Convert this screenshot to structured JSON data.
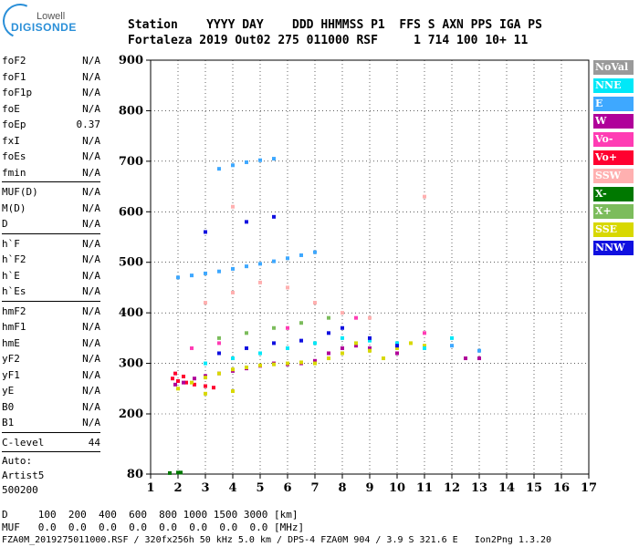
{
  "logo": {
    "line1": "Lowell",
    "line2": "DIGISONDE"
  },
  "header": {
    "labels": "Station    YYYY DAY    DDD HHMMSS P1  FFS S AXN PPS IGA PS",
    "values": "Fortaleza 2019 Out02 275 011000 RSF     1 714 100 10+ 11"
  },
  "params": {
    "group1": [
      {
        "name": "foF2",
        "value": "N/A"
      },
      {
        "name": "foF1",
        "value": "N/A"
      },
      {
        "name": "foF1p",
        "value": "N/A"
      },
      {
        "name": "foE",
        "value": "N/A"
      },
      {
        "name": "foEp",
        "value": "0.37"
      },
      {
        "name": "fxI",
        "value": "N/A"
      },
      {
        "name": "foEs",
        "value": "N/A"
      },
      {
        "name": "fmin",
        "value": "N/A"
      }
    ],
    "group2": [
      {
        "name": "MUF(D)",
        "value": "N/A"
      },
      {
        "name": "M(D)",
        "value": "N/A"
      },
      {
        "name": "D",
        "value": "N/A"
      }
    ],
    "group3": [
      {
        "name": "h`F",
        "value": "N/A"
      },
      {
        "name": "h`F2",
        "value": "N/A"
      },
      {
        "name": "h`E",
        "value": "N/A"
      },
      {
        "name": "h`Es",
        "value": "N/A"
      }
    ],
    "group4": [
      {
        "name": "hmF2",
        "value": "N/A"
      },
      {
        "name": "hmF1",
        "value": "N/A"
      },
      {
        "name": "hmE",
        "value": "N/A"
      },
      {
        "name": "yF2",
        "value": "N/A"
      },
      {
        "name": "yF1",
        "value": "N/A"
      },
      {
        "name": "yE",
        "value": "N/A"
      },
      {
        "name": "B0",
        "value": "N/A"
      },
      {
        "name": "B1",
        "value": "N/A"
      }
    ],
    "clevel": {
      "name": "C-level",
      "value": "44"
    },
    "auto": [
      "Auto:",
      "Artist5",
      "500200"
    ]
  },
  "legend": [
    {
      "label": "NoVal",
      "color": "#9a9a9a"
    },
    {
      "label": "NNE",
      "color": "#00e8f8"
    },
    {
      "label": "E",
      "color": "#3ea8ff"
    },
    {
      "label": "W",
      "color": "#b0009a"
    },
    {
      "label": "Vo-",
      "color": "#ff3cb4"
    },
    {
      "label": "Vo+",
      "color": "#ff0030"
    },
    {
      "label": "SSW",
      "color": "#ffb0b0"
    },
    {
      "label": "X-",
      "color": "#007800"
    },
    {
      "label": "X+",
      "color": "#7cbc5c"
    },
    {
      "label": "SSE",
      "color": "#d8d800"
    },
    {
      "label": "NNW",
      "color": "#1010e0"
    }
  ],
  "footer": {
    "line1": "D     100  200  400  600  800 1000 1500 3000 [km]",
    "line2": "MUF   0.0  0.0  0.0  0.0  0.0  0.0  0.0  0.0 [MHz]",
    "line3": "FZA0M_2019275011000.RSF / 320fx256h 50 kHz 5.0 km / DPS-4 FZA0M 904 / 3.9 S 321.6 E   Ion2Png 1.3.20"
  },
  "chart_data": {
    "type": "scatter",
    "x_ticks": [
      1,
      2,
      3,
      4,
      5,
      6,
      7,
      8,
      9,
      10,
      11,
      12,
      13,
      14,
      15,
      16,
      17
    ],
    "y_ticks": [
      80,
      200,
      300,
      400,
      500,
      600,
      700,
      800,
      900
    ],
    "xlim": [
      1,
      17
    ],
    "ylim": [
      80,
      900
    ],
    "series": [
      {
        "name": "E",
        "points": [
          [
            2.0,
            470
          ],
          [
            2.5,
            474
          ],
          [
            3.0,
            478
          ],
          [
            3.5,
            482
          ],
          [
            4.0,
            487
          ],
          [
            4.5,
            492
          ],
          [
            5.0,
            497
          ],
          [
            5.5,
            502
          ],
          [
            6.0,
            508
          ],
          [
            6.5,
            514
          ],
          [
            7.0,
            520
          ],
          [
            3.5,
            685
          ],
          [
            4.0,
            692
          ],
          [
            4.5,
            698
          ],
          [
            5.0,
            702
          ],
          [
            5.5,
            705
          ],
          [
            12.0,
            335
          ],
          [
            13.0,
            325
          ]
        ]
      },
      {
        "name": "X-",
        "points": [
          [
            1.7,
            82
          ],
          [
            2.0,
            83
          ],
          [
            2.1,
            83
          ]
        ]
      },
      {
        "name": "Vo+",
        "points": [
          [
            1.8,
            270
          ],
          [
            2.0,
            265
          ],
          [
            2.3,
            262
          ],
          [
            2.6,
            258
          ],
          [
            3.0,
            255
          ],
          [
            3.3,
            252
          ],
          [
            1.9,
            280
          ],
          [
            2.2,
            274
          ]
        ]
      },
      {
        "name": "W",
        "points": [
          [
            1.9,
            258
          ],
          [
            2.2,
            262
          ],
          [
            2.6,
            270
          ],
          [
            3.0,
            275
          ],
          [
            3.5,
            280
          ],
          [
            4.0,
            285
          ],
          [
            4.5,
            290
          ],
          [
            5.0,
            295
          ],
          [
            5.5,
            300
          ],
          [
            6.0,
            298
          ],
          [
            6.5,
            300
          ],
          [
            7.0,
            305
          ],
          [
            7.5,
            320
          ],
          [
            8.0,
            330
          ],
          [
            8.5,
            335
          ],
          [
            9.0,
            330
          ],
          [
            10.0,
            320
          ],
          [
            12.5,
            310
          ],
          [
            13.0,
            310
          ]
        ]
      },
      {
        "name": "SSE",
        "points": [
          [
            2.0,
            250
          ],
          [
            2.5,
            262
          ],
          [
            3.0,
            272
          ],
          [
            3.5,
            280
          ],
          [
            4.0,
            288
          ],
          [
            4.5,
            292
          ],
          [
            5.0,
            296
          ],
          [
            5.5,
            298
          ],
          [
            6.0,
            300
          ],
          [
            6.5,
            302
          ],
          [
            7.0,
            300
          ],
          [
            7.5,
            310
          ],
          [
            8.0,
            320
          ],
          [
            8.5,
            340
          ],
          [
            9.0,
            325
          ],
          [
            9.5,
            310
          ],
          [
            10.0,
            330
          ],
          [
            10.5,
            340
          ],
          [
            11.0,
            335
          ],
          [
            4.0,
            245
          ],
          [
            3.0,
            240
          ]
        ]
      },
      {
        "name": "NNE",
        "points": [
          [
            3.0,
            300
          ],
          [
            4.0,
            310
          ],
          [
            5.0,
            320
          ],
          [
            6.0,
            330
          ],
          [
            7.0,
            340
          ],
          [
            8.0,
            350
          ],
          [
            9.0,
            345
          ],
          [
            10.0,
            340
          ],
          [
            11.0,
            330
          ],
          [
            12.0,
            350
          ]
        ]
      },
      {
        "name": "NNW",
        "points": [
          [
            3.5,
            320
          ],
          [
            4.5,
            330
          ],
          [
            5.5,
            340
          ],
          [
            6.5,
            345
          ],
          [
            7.5,
            360
          ],
          [
            8.0,
            370
          ],
          [
            9.0,
            350
          ],
          [
            10.0,
            335
          ],
          [
            3.0,
            560
          ],
          [
            4.5,
            580
          ],
          [
            5.5,
            590
          ]
        ]
      },
      {
        "name": "SSW",
        "points": [
          [
            3.0,
            420
          ],
          [
            4.0,
            440
          ],
          [
            5.0,
            460
          ],
          [
            6.0,
            450
          ],
          [
            7.0,
            420
          ],
          [
            8.0,
            400
          ],
          [
            9.0,
            390
          ],
          [
            11.0,
            630
          ],
          [
            4.0,
            610
          ]
        ]
      },
      {
        "name": "X+",
        "points": [
          [
            3.5,
            350
          ],
          [
            4.5,
            360
          ],
          [
            5.5,
            370
          ],
          [
            6.5,
            380
          ],
          [
            7.5,
            390
          ]
        ]
      },
      {
        "name": "Vo-",
        "points": [
          [
            2.5,
            330
          ],
          [
            3.5,
            340
          ],
          [
            6.0,
            370
          ],
          [
            8.5,
            390
          ],
          [
            11.0,
            360
          ]
        ]
      }
    ]
  }
}
